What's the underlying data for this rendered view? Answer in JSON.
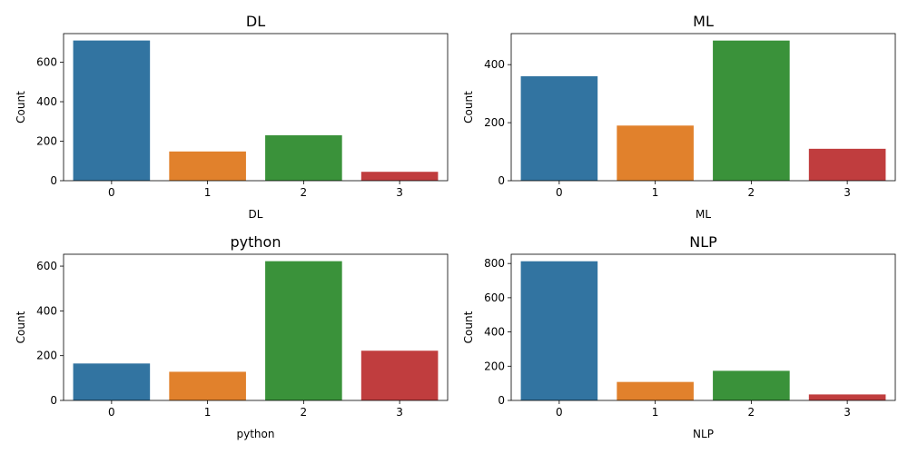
{
  "chart_data": [
    {
      "type": "bar",
      "title": "DL",
      "xlabel": "DL",
      "ylabel": "Count",
      "categories": [
        "0",
        "1",
        "2",
        "3"
      ],
      "values": [
        710,
        148,
        230,
        45
      ],
      "ylim": [
        0,
        745
      ],
      "yticks": [
        0,
        200,
        400,
        600
      ],
      "colors": [
        "#3274a1",
        "#e1812c",
        "#3a923a",
        "#c03d3e"
      ]
    },
    {
      "type": "bar",
      "title": "ML",
      "xlabel": "ML",
      "ylabel": "Count",
      "categories": [
        "0",
        "1",
        "2",
        "3"
      ],
      "values": [
        360,
        190,
        483,
        110
      ],
      "ylim": [
        0,
        507
      ],
      "yticks": [
        0,
        200,
        400
      ],
      "colors": [
        "#3274a1",
        "#e1812c",
        "#3a923a",
        "#c03d3e"
      ]
    },
    {
      "type": "bar",
      "title": "python",
      "xlabel": "python",
      "ylabel": "Count",
      "categories": [
        "0",
        "1",
        "2",
        "3"
      ],
      "values": [
        165,
        128,
        622,
        222
      ],
      "ylim": [
        0,
        653
      ],
      "yticks": [
        0,
        200,
        400,
        600
      ],
      "colors": [
        "#3274a1",
        "#e1812c",
        "#3a923a",
        "#c03d3e"
      ]
    },
    {
      "type": "bar",
      "title": "NLP",
      "xlabel": "NLP",
      "ylabel": "Count",
      "categories": [
        "0",
        "1",
        "2",
        "3"
      ],
      "values": [
        813,
        108,
        173,
        35
      ],
      "ylim": [
        0,
        854
      ],
      "yticks": [
        0,
        200,
        400,
        600,
        800
      ],
      "colors": [
        "#3274a1",
        "#e1812c",
        "#3a923a",
        "#c03d3e"
      ]
    }
  ]
}
